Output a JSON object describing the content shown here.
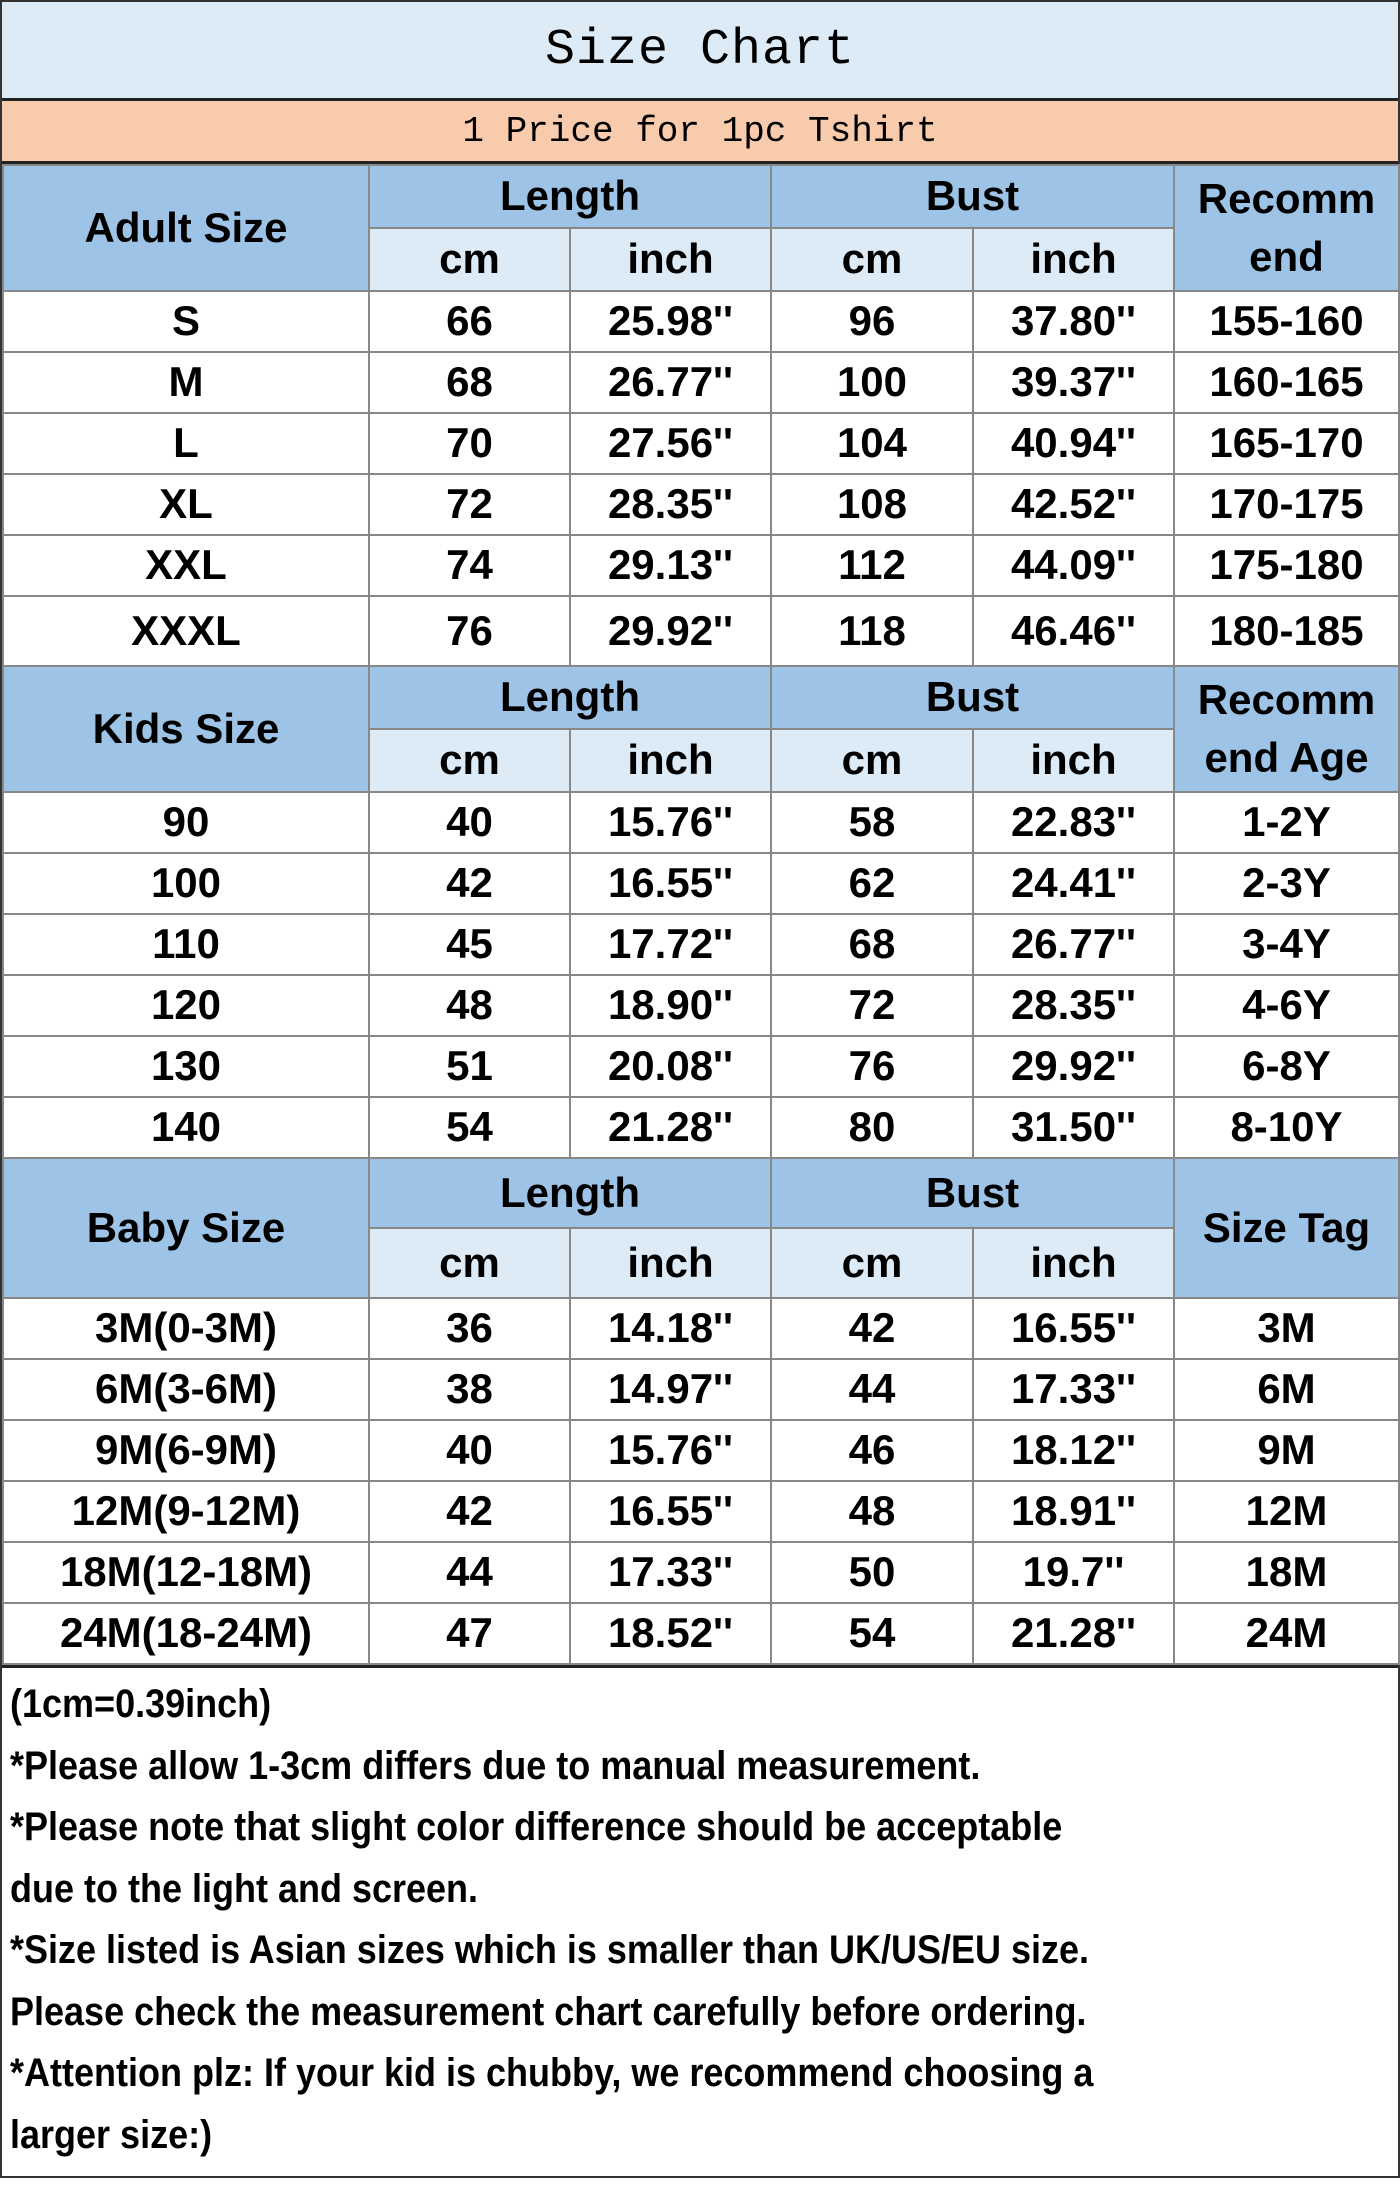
{
  "title": "Size Chart",
  "subtitle": "1 Price for 1pc Tshirt",
  "colors": {
    "title_bg": "#ddebf7",
    "subtitle_bg": "#f8cbad",
    "header_dark": "#9dc3e6",
    "header_light": "#ddebf7"
  },
  "sections": [
    {
      "label": "Adult Size",
      "length_label": "Length",
      "bust_label": "Bust",
      "unit_cm": "cm",
      "unit_inch": "inch",
      "last_header_lines": [
        "Recomm",
        "end"
      ],
      "rows": [
        [
          "S",
          "66",
          "25.98''",
          "96",
          "37.80''",
          "155-160"
        ],
        [
          "M",
          "68",
          "26.77''",
          "100",
          "39.37''",
          "160-165"
        ],
        [
          "L",
          "70",
          "27.56''",
          "104",
          "40.94''",
          "165-170"
        ],
        [
          "XL",
          "72",
          "28.35''",
          "108",
          "42.52''",
          "170-175"
        ],
        [
          "XXL",
          "74",
          "29.13''",
          "112",
          "44.09''",
          "175-180"
        ],
        [
          "XXXL",
          "76",
          "29.92''",
          "118",
          "46.46''",
          "180-185"
        ]
      ]
    },
    {
      "label": "Kids Size",
      "length_label": "Length",
      "bust_label": "Bust",
      "unit_cm": "cm",
      "unit_inch": "inch",
      "last_header_lines": [
        "Recomm",
        "end Age"
      ],
      "rows": [
        [
          "90",
          "40",
          "15.76''",
          "58",
          "22.83''",
          "1-2Y"
        ],
        [
          "100",
          "42",
          "16.55''",
          "62",
          "24.41''",
          "2-3Y"
        ],
        [
          "110",
          "45",
          "17.72''",
          "68",
          "26.77''",
          "3-4Y"
        ],
        [
          "120",
          "48",
          "18.90''",
          "72",
          "28.35''",
          "4-6Y"
        ],
        [
          "130",
          "51",
          "20.08''",
          "76",
          "29.92''",
          "6-8Y"
        ],
        [
          "140",
          "54",
          "21.28''",
          "80",
          "31.50''",
          "8-10Y"
        ]
      ]
    },
    {
      "label": "Baby Size",
      "length_label": "Length",
      "bust_label": "Bust",
      "unit_cm": "cm",
      "unit_inch": "inch",
      "last_header_lines": [
        "Size Tag"
      ],
      "rows": [
        [
          "3M(0-3M)",
          "36",
          "14.18''",
          "42",
          "16.55''",
          "3M"
        ],
        [
          "6M(3-6M)",
          "38",
          "14.97''",
          "44",
          "17.33''",
          "6M"
        ],
        [
          "9M(6-9M)",
          "40",
          "15.76''",
          "46",
          "18.12''",
          "9M"
        ],
        [
          "12M(9-12M)",
          "42",
          "16.55''",
          "48",
          "18.91''",
          "12M"
        ],
        [
          "18M(12-18M)",
          "44",
          "17.33''",
          "50",
          "19.7''",
          "18M"
        ],
        [
          "24M(18-24M)",
          "47",
          "18.52''",
          "54",
          "21.28''",
          "24M"
        ]
      ]
    }
  ],
  "notes": [
    "(1cm=0.39inch)",
    "*Please allow 1-3cm differs due to manual measurement.",
    "*Please note that slight color difference should be acceptable",
    "due to the light and screen.",
    "*Size listed is Asian sizes which is smaller than UK/US/EU size.",
    "Please check the measurement chart carefully before ordering.",
    "*Attention plz: If your kid is chubby, we recommend choosing a",
    "larger size:)"
  ]
}
